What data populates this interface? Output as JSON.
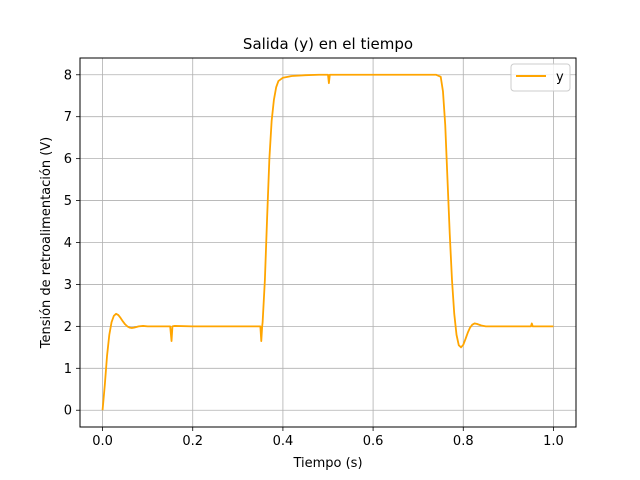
{
  "chart_data": {
    "type": "line",
    "title": "Salida (y) en el tiempo",
    "xlabel": "Tiempo (s)",
    "ylabel": "Tensión de retroalimentación (V)",
    "xlim": [
      -0.05,
      1.05
    ],
    "ylim": [
      -0.4,
      8.4
    ],
    "xticks": [
      0.0,
      0.2,
      0.4,
      0.6,
      0.8,
      1.0
    ],
    "xtick_labels": [
      "0.0",
      "0.2",
      "0.4",
      "0.6",
      "0.8",
      "1.0"
    ],
    "yticks": [
      0,
      1,
      2,
      3,
      4,
      5,
      6,
      7,
      8
    ],
    "ytick_labels": [
      "0",
      "1",
      "2",
      "3",
      "4",
      "5",
      "6",
      "7",
      "8"
    ],
    "grid": true,
    "legend_position": "top-right",
    "series": [
      {
        "name": "y",
        "color": "#FFA500",
        "points": [
          [
            0.0,
            0.0
          ],
          [
            0.005,
            0.6
          ],
          [
            0.01,
            1.3
          ],
          [
            0.015,
            1.8
          ],
          [
            0.02,
            2.1
          ],
          [
            0.025,
            2.25
          ],
          [
            0.03,
            2.3
          ],
          [
            0.035,
            2.27
          ],
          [
            0.04,
            2.2
          ],
          [
            0.045,
            2.12
          ],
          [
            0.05,
            2.05
          ],
          [
            0.055,
            2.0
          ],
          [
            0.06,
            1.97
          ],
          [
            0.065,
            1.96
          ],
          [
            0.07,
            1.97
          ],
          [
            0.08,
            2.0
          ],
          [
            0.09,
            2.01
          ],
          [
            0.1,
            2.0
          ],
          [
            0.12,
            2.0
          ],
          [
            0.15,
            2.0
          ],
          [
            0.153,
            1.65
          ],
          [
            0.155,
            2.0
          ],
          [
            0.16,
            2.01
          ],
          [
            0.2,
            2.0
          ],
          [
            0.25,
            2.0
          ],
          [
            0.3,
            2.0
          ],
          [
            0.34,
            2.0
          ],
          [
            0.35,
            2.0
          ],
          [
            0.352,
            1.65
          ],
          [
            0.354,
            2.0
          ],
          [
            0.355,
            2.1
          ],
          [
            0.36,
            3.1
          ],
          [
            0.365,
            4.6
          ],
          [
            0.37,
            6.0
          ],
          [
            0.375,
            6.9
          ],
          [
            0.38,
            7.4
          ],
          [
            0.385,
            7.7
          ],
          [
            0.39,
            7.85
          ],
          [
            0.4,
            7.93
          ],
          [
            0.42,
            7.97
          ],
          [
            0.45,
            7.99
          ],
          [
            0.48,
            8.0
          ],
          [
            0.5,
            8.0
          ],
          [
            0.502,
            7.8
          ],
          [
            0.504,
            8.0
          ],
          [
            0.55,
            8.0
          ],
          [
            0.6,
            8.0
          ],
          [
            0.65,
            8.0
          ],
          [
            0.7,
            8.0
          ],
          [
            0.74,
            8.0
          ],
          [
            0.75,
            7.95
          ],
          [
            0.755,
            7.6
          ],
          [
            0.76,
            6.8
          ],
          [
            0.765,
            5.5
          ],
          [
            0.77,
            4.2
          ],
          [
            0.775,
            3.1
          ],
          [
            0.78,
            2.3
          ],
          [
            0.785,
            1.8
          ],
          [
            0.79,
            1.55
          ],
          [
            0.795,
            1.5
          ],
          [
            0.8,
            1.56
          ],
          [
            0.805,
            1.7
          ],
          [
            0.81,
            1.85
          ],
          [
            0.815,
            1.97
          ],
          [
            0.82,
            2.04
          ],
          [
            0.825,
            2.07
          ],
          [
            0.83,
            2.06
          ],
          [
            0.84,
            2.02
          ],
          [
            0.85,
            2.0
          ],
          [
            0.88,
            2.0
          ],
          [
            0.9,
            2.0
          ],
          [
            0.95,
            2.0
          ],
          [
            0.952,
            2.07
          ],
          [
            0.954,
            2.0
          ],
          [
            1.0,
            2.0
          ]
        ]
      }
    ]
  }
}
